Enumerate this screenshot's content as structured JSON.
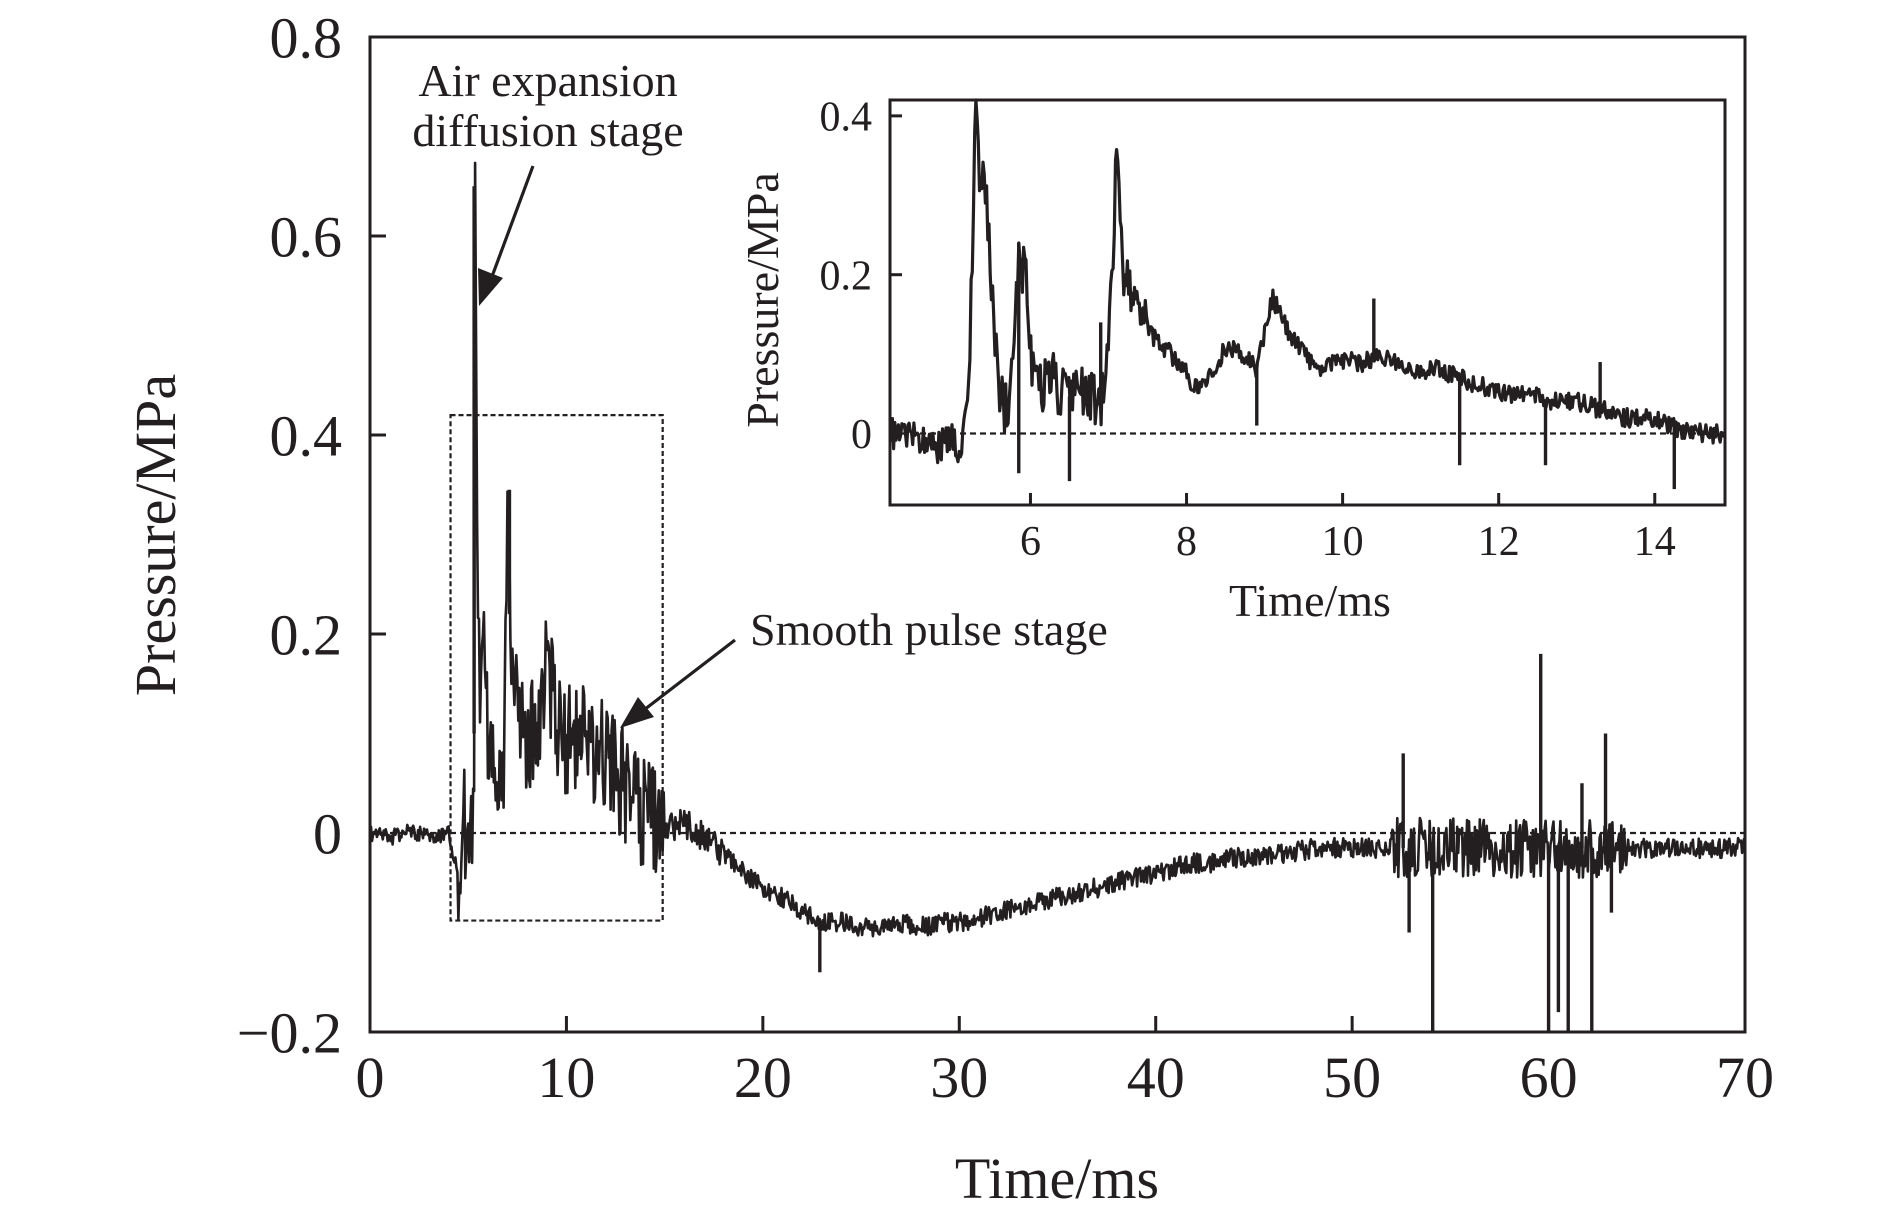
{
  "chart_data": [
    {
      "id": "main",
      "type": "line",
      "xlabel": "Time/ms",
      "ylabel": "Pressure/MPa",
      "xlim": [
        0,
        70
      ],
      "ylim": [
        -0.2,
        0.8
      ],
      "x_ticks": [
        0,
        10,
        20,
        30,
        40,
        50,
        60,
        70
      ],
      "x_tick_labels": [
        "0",
        "10",
        "20",
        "30",
        "40",
        "50",
        "60",
        "70"
      ],
      "y_ticks": [
        -0.2,
        0,
        0.2,
        0.4,
        0.6,
        0.8
      ],
      "y_tick_labels": [
        "−0.2",
        "0",
        "0.2",
        "0.4",
        "0.6",
        "0.8"
      ],
      "grid": false,
      "reference_line": {
        "y": 0,
        "style": "dashed"
      },
      "zoom_box": {
        "x": [
          4.1,
          14.9
        ],
        "y": [
          -0.088,
          0.42
        ]
      },
      "series": [
        {
          "x": [
            0,
            1,
            2,
            3,
            4,
            4.5,
            4.8,
            5.0,
            5.1,
            5.2,
            5.3,
            5.35,
            5.45,
            5.6,
            5.8,
            5.9,
            6.0,
            6.2,
            6.5,
            6.8,
            7.0,
            7.1,
            7.2,
            7.4,
            7.6,
            7.8,
            8.0,
            8.3,
            8.6,
            9.0,
            9.2,
            9.5,
            10.0,
            10.3,
            10.5,
            11.0,
            11.5,
            12.0,
            12.5,
            13.0,
            13.3,
            13.5,
            14.0,
            14.5,
            15,
            16,
            17,
            18,
            19,
            20,
            21,
            22,
            23,
            24,
            25,
            26,
            27,
            28,
            29,
            30,
            31,
            32,
            33,
            34,
            35,
            36,
            37,
            38,
            39,
            40,
            41,
            42,
            43,
            44,
            45,
            46,
            47,
            48,
            49,
            50,
            51,
            52,
            53,
            54,
            55,
            56,
            57,
            58,
            59,
            60,
            61,
            62,
            63,
            64,
            65,
            66,
            67,
            68,
            69,
            70
          ],
          "y": [
            0.0,
            -0.005,
            0.002,
            -0.004,
            0.0,
            -0.04,
            0.01,
            -0.05,
            0.04,
            -0.03,
            0.1,
            0.65,
            0.33,
            0.12,
            0.25,
            0.2,
            0.06,
            0.08,
            0.05,
            0.07,
            0.34,
            0.22,
            0.2,
            0.13,
            0.09,
            0.12,
            0.08,
            0.1,
            0.11,
            0.17,
            0.15,
            0.12,
            0.09,
            0.1,
            0.09,
            0.09,
            0.08,
            0.07,
            0.06,
            0.05,
            0.07,
            0.03,
            0.02,
            0.01,
            0.005,
            0.01,
            -0.005,
            -0.02,
            -0.04,
            -0.055,
            -0.065,
            -0.08,
            -0.09,
            -0.09,
            -0.095,
            -0.095,
            -0.09,
            -0.095,
            -0.09,
            -0.09,
            -0.085,
            -0.08,
            -0.075,
            -0.07,
            -0.065,
            -0.06,
            -0.055,
            -0.05,
            -0.045,
            -0.04,
            -0.035,
            -0.03,
            -0.03,
            -0.025,
            -0.025,
            -0.02,
            -0.02,
            -0.015,
            -0.015,
            -0.015,
            -0.015,
            -0.015,
            -0.015,
            -0.015,
            -0.015,
            -0.015,
            -0.015,
            -0.015,
            -0.015,
            -0.015,
            -0.015,
            -0.015,
            -0.015,
            -0.015,
            -0.015,
            -0.015,
            -0.015,
            -0.015,
            -0.015,
            -0.015
          ]
        }
      ],
      "spikes": [
        {
          "x": 5.3,
          "y": 0.65
        },
        {
          "x": 7.1,
          "y": 0.345
        },
        {
          "x": 22.9,
          "y": -0.14
        },
        {
          "x": 52.6,
          "y": 0.08
        },
        {
          "x": 52.9,
          "y": -0.1
        },
        {
          "x": 54.1,
          "y": -0.2
        },
        {
          "x": 59.6,
          "y": 0.18
        },
        {
          "x": 60.0,
          "y": -0.2
        },
        {
          "x": 60.5,
          "y": -0.18
        },
        {
          "x": 61.0,
          "y": -0.2
        },
        {
          "x": 61.7,
          "y": 0.05
        },
        {
          "x": 62.2,
          "y": -0.2
        },
        {
          "x": 62.9,
          "y": 0.1
        },
        {
          "x": 63.2,
          "y": -0.08
        }
      ],
      "annotations": [
        {
          "id": "air-expansion",
          "lines": [
            "Air expansion",
            "diffusion stage"
          ],
          "points_to": {
            "x": 5.5,
            "y": 0.55
          }
        },
        {
          "id": "smooth-pulse",
          "lines": [
            "Smooth pulse stage"
          ],
          "points_to": {
            "x": 12.3,
            "y": 0.105
          }
        }
      ]
    },
    {
      "id": "inset",
      "type": "line",
      "xlabel": "Time/ms",
      "ylabel": "Pressure/MPa",
      "xlim": [
        4.2,
        14.9
      ],
      "ylim": [
        -0.09,
        0.42
      ],
      "x_ticks": [
        6,
        8,
        10,
        12,
        14
      ],
      "x_tick_labels": [
        "6",
        "8",
        "10",
        "12",
        "14"
      ],
      "y_ticks": [
        0,
        0.2,
        0.4
      ],
      "y_tick_labels": [
        "0",
        "0.2",
        "0.4"
      ],
      "grid": false,
      "reference_line": {
        "y": 0,
        "style": "dashed"
      },
      "series": [
        {
          "x": [
            4.2,
            4.5,
            4.8,
            5.0,
            5.1,
            5.2,
            5.25,
            5.3,
            5.35,
            5.45,
            5.55,
            5.65,
            5.75,
            5.85,
            5.95,
            6.05,
            6.15,
            6.3,
            6.45,
            6.6,
            6.75,
            6.9,
            7.0,
            7.1,
            7.2,
            7.3,
            7.5,
            7.7,
            7.9,
            8.1,
            8.3,
            8.5,
            8.7,
            8.9,
            9.1,
            9.3,
            9.5,
            9.7,
            9.9,
            10.1,
            10.3,
            10.5,
            10.7,
            10.9,
            11.2,
            11.5,
            11.8,
            12.1,
            12.4,
            12.7,
            13.0,
            13.3,
            13.6,
            13.9,
            14.2,
            14.5,
            14.9
          ],
          "y": [
            0.0,
            0.0,
            -0.02,
            0.0,
            -0.03,
            0.05,
            0.2,
            0.42,
            0.33,
            0.28,
            0.1,
            0.03,
            0.05,
            0.24,
            0.18,
            0.05,
            0.06,
            0.07,
            0.04,
            0.06,
            0.05,
            0.03,
            0.1,
            0.34,
            0.2,
            0.17,
            0.13,
            0.11,
            0.09,
            0.06,
            0.07,
            0.11,
            0.1,
            0.08,
            0.17,
            0.13,
            0.1,
            0.08,
            0.09,
            0.09,
            0.09,
            0.1,
            0.09,
            0.08,
            0.08,
            0.07,
            0.06,
            0.05,
            0.05,
            0.04,
            0.04,
            0.03,
            0.02,
            0.02,
            0.01,
            0.0,
            0.0
          ]
        }
      ],
      "spikes": [
        {
          "x": 5.3,
          "y": 0.42
        },
        {
          "x": 5.85,
          "y": -0.05
        },
        {
          "x": 6.5,
          "y": -0.06
        },
        {
          "x": 6.9,
          "y": 0.14
        },
        {
          "x": 7.1,
          "y": 0.34
        },
        {
          "x": 8.9,
          "y": 0.01
        },
        {
          "x": 10.4,
          "y": 0.17
        },
        {
          "x": 11.5,
          "y": -0.04
        },
        {
          "x": 12.6,
          "y": -0.04
        },
        {
          "x": 13.3,
          "y": 0.09
        },
        {
          "x": 14.25,
          "y": -0.07
        }
      ]
    }
  ]
}
